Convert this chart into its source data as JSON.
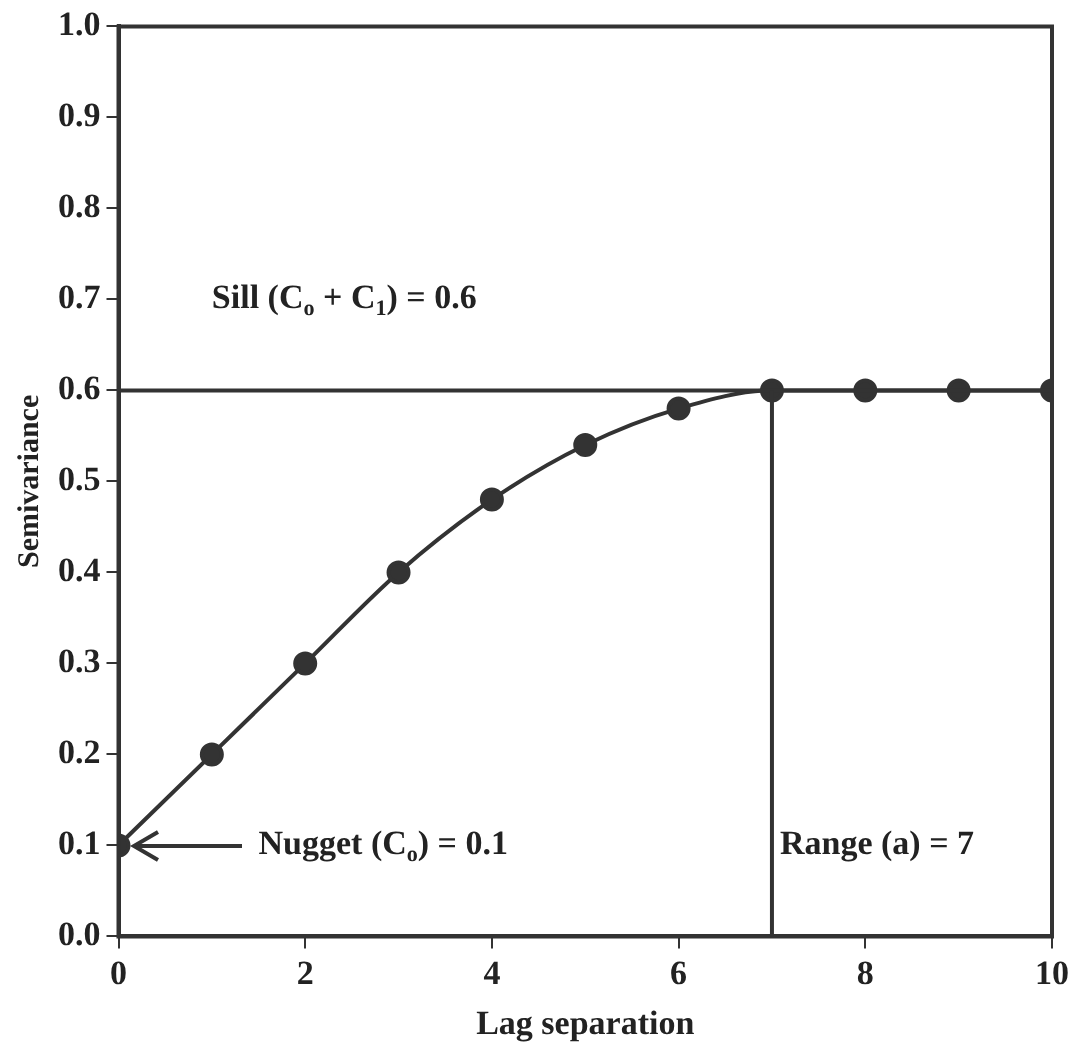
{
  "chart_data": {
    "type": "line",
    "xlabel": "Lag separation",
    "ylabel": "Semivariance",
    "x": [
      0,
      1,
      2,
      3,
      4,
      5,
      6,
      7,
      8,
      9,
      10
    ],
    "series": [
      {
        "color": "#333333",
        "values": [
          0.1,
          0.2,
          0.3,
          0.4,
          0.48,
          0.54,
          0.58,
          0.6,
          0.6,
          0.6,
          0.6
        ]
      }
    ],
    "xlim": [
      0,
      10
    ],
    "xticks": [
      0,
      2,
      4,
      6,
      8,
      10
    ],
    "ylim": [
      0,
      1
    ],
    "yticks": [
      {
        "value": 0,
        "label": "0.0"
      },
      {
        "value": 0.1,
        "label": "0.1"
      },
      {
        "value": 0.2,
        "label": "0.2"
      },
      {
        "value": 0.3,
        "label": "0.3"
      },
      {
        "value": 0.4,
        "label": "0.4"
      },
      {
        "value": 0.5,
        "label": "0.5"
      },
      {
        "value": 0.6,
        "label": "0.6"
      },
      {
        "value": 0.7,
        "label": "0.7"
      },
      {
        "value": 0.8,
        "label": "0.8"
      },
      {
        "value": 0.9,
        "label": "0.9"
      },
      {
        "value": 1,
        "label": "1.0"
      }
    ],
    "marker": "circle",
    "grid": false,
    "legend": false,
    "ref_lines": [
      {
        "axis": "y",
        "value": 0.6,
        "label": "Sill (C$_{o}$ + C$_{1}$) = 0.6",
        "color": "#333333"
      },
      {
        "axis": "x",
        "value": 7,
        "label": "Range (a) = 7",
        "color": "#333333"
      }
    ],
    "annotations": [
      "Nugget (C$_{o}$) = 0.1"
    ]
  }
}
